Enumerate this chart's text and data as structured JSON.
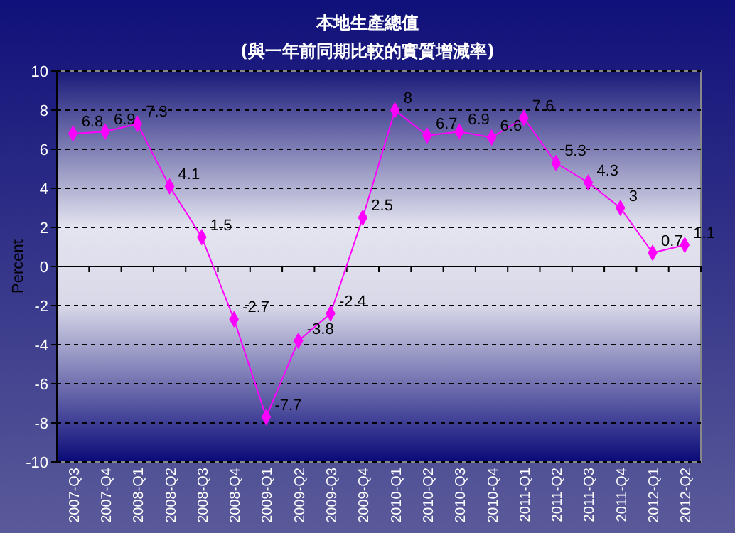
{
  "chart_data": {
    "type": "line",
    "title": "本地生產總值",
    "subtitle": "(與一年前同期比較的實質增減率)",
    "ylabel": "Percent",
    "categories": [
      "2007-Q3",
      "2007-Q4",
      "2008-Q1",
      "2008-Q2",
      "2008-Q3",
      "2008-Q4",
      "2009-Q1",
      "2009-Q2",
      "2009-Q3",
      "2009-Q4",
      "2010-Q1",
      "2010-Q2",
      "2010-Q3",
      "2010-Q4",
      "2011-Q1",
      "2011-Q2",
      "2011-Q3",
      "2011-Q4",
      "2012-Q1",
      "2012-Q2"
    ],
    "series": [
      {
        "color": "#ff00ff",
        "values": [
          6.8,
          6.9,
          7.3,
          4.1,
          1.5,
          -2.7,
          -7.7,
          -3.8,
          -2.4,
          2.5,
          8,
          6.7,
          6.9,
          6.6,
          7.6,
          5.3,
          4.3,
          3,
          0.7,
          1.1
        ]
      }
    ],
    "ylim": [
      -10,
      10
    ],
    "yticks": [
      -10,
      -8,
      -6,
      -4,
      -2,
      0,
      2,
      4,
      6,
      8,
      10
    ],
    "grid": "y",
    "marker": "diamond",
    "line_style": "solid",
    "data_labels": true
  }
}
